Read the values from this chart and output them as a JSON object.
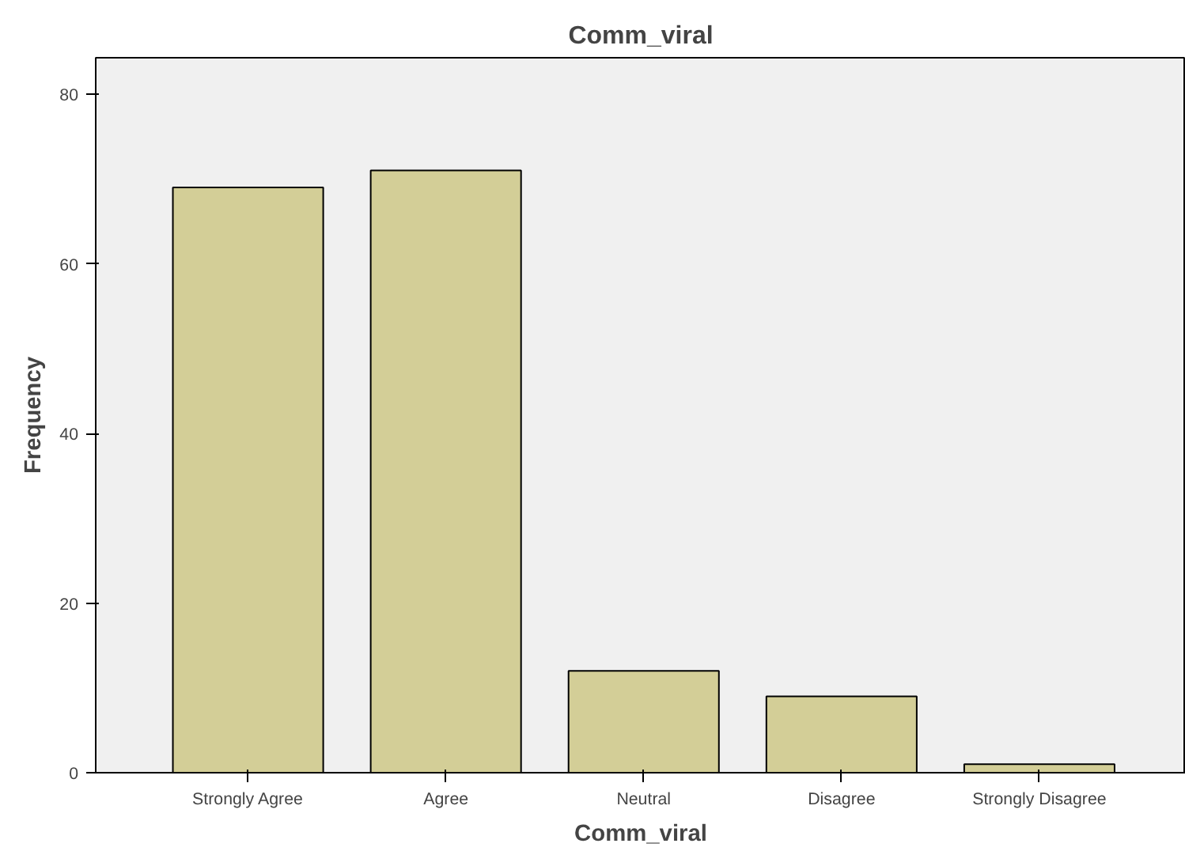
{
  "chart_data": {
    "type": "bar",
    "title": "Comm_viral",
    "xlabel": "Comm_viral",
    "ylabel": "Frequency",
    "categories": [
      "Strongly Agree",
      "Agree",
      "Neutral",
      "Disagree",
      "Strongly Disagree"
    ],
    "values": [
      69,
      71,
      12,
      9,
      1
    ],
    "color": "#d3ce97",
    "ylim": [
      0,
      84.3
    ],
    "yticks": [
      0,
      20,
      40,
      60,
      80
    ],
    "grid": false
  }
}
